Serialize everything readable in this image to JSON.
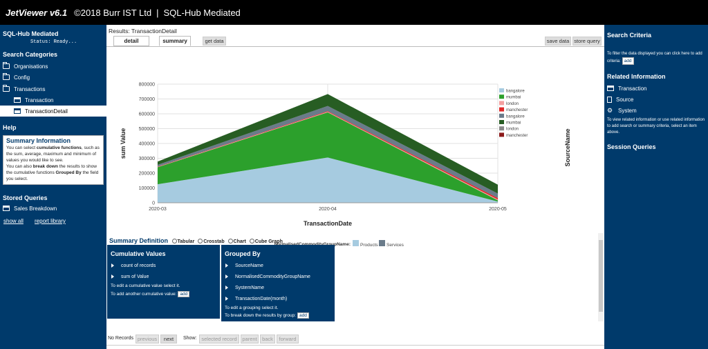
{
  "topbar": {
    "app": "JetViewer v6.1",
    "copyright": "©2018 Burr IST Ltd",
    "sep": "|",
    "title": "SQL-Hub Mediated"
  },
  "left": {
    "title": "SQL-Hub Mediated",
    "status": "Status: Ready...",
    "search_categories": "Search Categories",
    "items": [
      "Organisations",
      "Config",
      "Transactions",
      "Transaction",
      "TransactionDetail"
    ],
    "help": "Help",
    "summary_title": "Summary Information",
    "help_p1a": "You can select ",
    "help_p1b": "cumulative functions",
    "help_p1c": ", such as the sum, average, maximum and minimum of values you would like to see.",
    "help_p2a": "You can also ",
    "help_p2b": "break down",
    "help_p2c": " the results to show the cumulative functions ",
    "help_p2d": "Grouped By",
    "help_p2e": " the field you select.",
    "stored_queries": "Stored Queries",
    "sales_breakdown": "Sales Breakdown",
    "show_all": "show all",
    "report_library": "report library"
  },
  "main": {
    "results_title": "Results: TransactionDetail",
    "tabs": {
      "detail": "detail",
      "summary": "summary",
      "get_data": "get data"
    },
    "save_data": "save data",
    "store_query": "store query",
    "summary_definition": "Summary Definition",
    "radio": [
      "Tabular",
      "Crosstab",
      "Chart",
      "Cube Graph"
    ],
    "cumulative_title": "Cumulative Values",
    "cumulative_items": [
      "count of records",
      "sum of Value"
    ],
    "cum_help1": "To edit a cumulative value select it.",
    "cum_help2": "To add another cumulative value:",
    "add": "add",
    "grouped_title": "Grouped By",
    "grouped_items": [
      "SourceName",
      "NormalisedCommodityGroupName",
      "SystemName",
      "TransactionDate(month)"
    ],
    "grp_help1": "To edit a grouping select it.",
    "grp_help2": "To break down the results by group:",
    "no_records": "No Records",
    "nav": {
      "previous": "previous",
      "next": "next",
      "show": "Show:",
      "selected_record": "selected record",
      "parent": "parent",
      "back": "back",
      "forward": "forward"
    }
  },
  "right": {
    "search_criteria": "Search Criteria",
    "filter_text": "To filter the data displayed you can click here to add criteria:",
    "add": "add",
    "related": "Related Information",
    "related_items": [
      "Transaction",
      "Source",
      "System"
    ],
    "related_text": "To view related information or use related information to add search or summary criteria, select an item above.",
    "session": "Session Queries"
  },
  "chart_data": {
    "type": "area",
    "xlabel": "TransactionDate",
    "ylabel": "sum Value",
    "right_label": "SourceName",
    "x": [
      "2020-03",
      "2020-04",
      "2020-05"
    ],
    "ylim": [
      0,
      800000
    ],
    "yticks": [
      0,
      100000,
      200000,
      300000,
      400000,
      500000,
      600000,
      700000,
      800000
    ],
    "ytick_labels": [
      "0",
      "100000",
      "200000",
      "300000",
      "400000",
      "500000",
      "600000",
      "700000",
      "800000"
    ],
    "series": [
      {
        "name": "bangalore",
        "group": "Products",
        "color": "#a6cbe0",
        "values": [
          125000,
          305000,
          8000
        ]
      },
      {
        "name": "mumbai",
        "group": "Products",
        "color": "#2ca02c",
        "values": [
          115000,
          305000,
          8000
        ]
      },
      {
        "name": "london",
        "group": "Products",
        "color": "#f4a0a0",
        "values": [
          2000,
          4000,
          6000
        ]
      },
      {
        "name": "manchester",
        "group": "Products",
        "color": "#e02828",
        "values": [
          2000,
          4000,
          10000
        ]
      },
      {
        "name": "bangalore",
        "group": "Services",
        "color": "#6a7b8a",
        "values": [
          12000,
          35000,
          30000
        ]
      },
      {
        "name": "mumbai",
        "group": "Services",
        "color": "#275d23",
        "values": [
          22000,
          80000,
          60000
        ]
      },
      {
        "name": "london",
        "group": "Services",
        "color": "#888888",
        "values": [
          0,
          0,
          0
        ]
      },
      {
        "name": "manchester",
        "group": "Services",
        "color": "#8b1a1a",
        "values": [
          0,
          0,
          0
        ]
      }
    ],
    "legend_position": "right",
    "color_legend_label": "NormalisedCommodityGroupName:",
    "color_legend": [
      {
        "name": "Products",
        "color": "#a6cbe0"
      },
      {
        "name": "Services",
        "color": "#6a7b8a"
      }
    ]
  }
}
